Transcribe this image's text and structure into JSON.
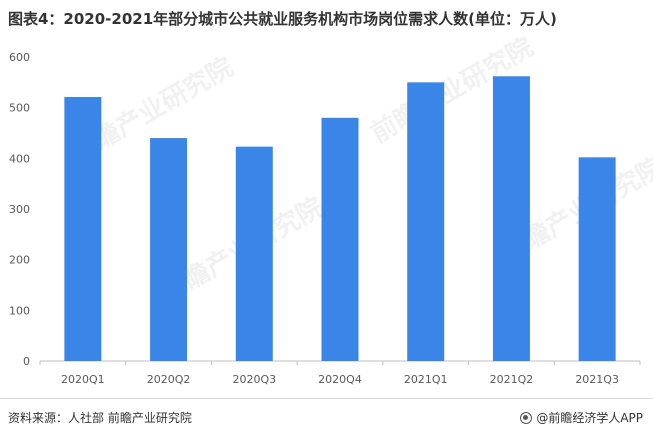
{
  "title": "图表4：2020-2021年部分城市公共就业服务机构市场岗位需求人数(单位：万人)",
  "source": "资料来源：人社部 前瞻产业研究院",
  "brand": "@前瞻经济学人APP",
  "watermark": "前瞻产业研究院",
  "colors": {
    "bar": "#3a86e8",
    "axis": "#bfbfbf",
    "tick": "#595959"
  },
  "chart_data": {
    "type": "bar",
    "categories": [
      "2020Q1",
      "2020Q2",
      "2020Q3",
      "2020Q4",
      "2021Q1",
      "2021Q2",
      "2021Q3"
    ],
    "values": [
      521,
      440,
      423,
      480,
      550,
      562,
      402
    ],
    "title": "图表4：2020-2021年部分城市公共就业服务机构市场岗位需求人数(单位：万人)",
    "xlabel": "",
    "ylabel": "",
    "ylim": [
      0,
      600
    ],
    "yticks": [
      0,
      100,
      200,
      300,
      400,
      500,
      600
    ],
    "grid": false,
    "legend": "none"
  }
}
